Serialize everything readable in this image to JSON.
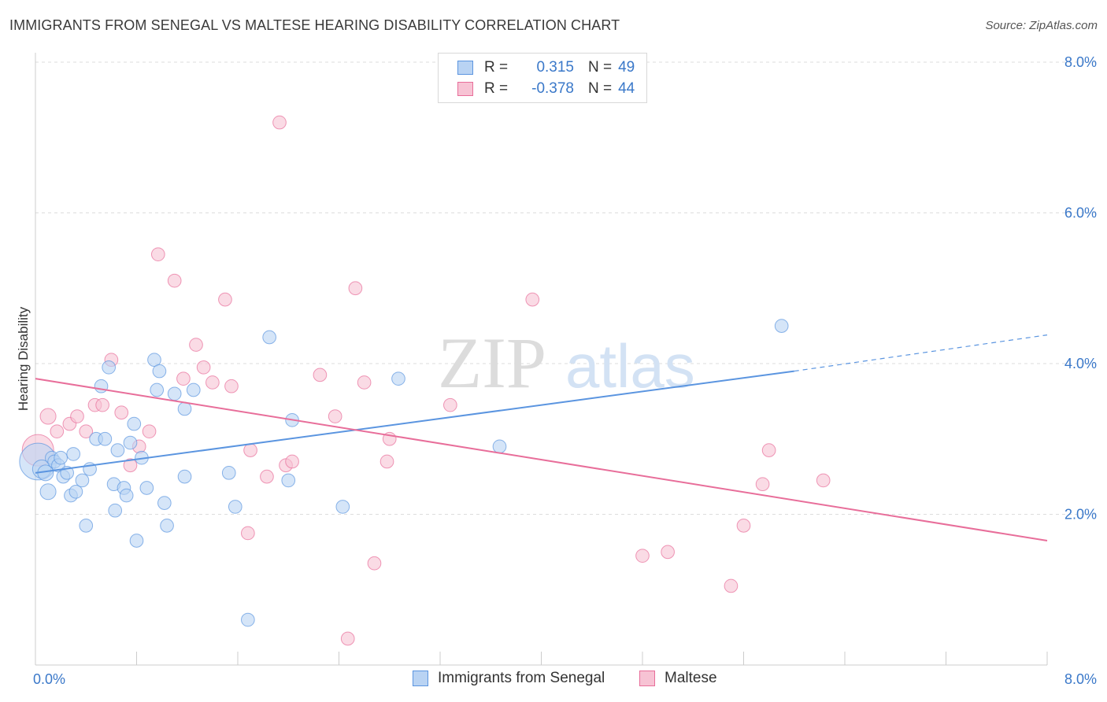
{
  "header": {
    "title": "IMMIGRANTS FROM SENEGAL VS MALTESE HEARING DISABILITY CORRELATION CHART",
    "source": "Source: ZipAtlas.com"
  },
  "colors": {
    "blue": "#5b95e0",
    "blue_fill": "#b9d3f3",
    "pink": "#e86e9a",
    "pink_fill": "#f7c3d4",
    "axis_text": "#3a78c9"
  },
  "legend": {
    "rows": [
      {
        "r_label": "R =",
        "r_value": "0.315",
        "n_label": "N =",
        "n_value": "49"
      },
      {
        "r_label": "R =",
        "r_value": "-0.378",
        "n_label": "N =",
        "n_value": "44"
      }
    ]
  },
  "watermark": {
    "zip": "ZIP",
    "atlas": "atlas"
  },
  "chart_data": {
    "type": "scatter",
    "title": "IMMIGRANTS FROM SENEGAL VS MALTESE HEARING DISABILITY CORRELATION CHART",
    "xlabel": "",
    "ylabel": "Hearing Disability",
    "xlim": [
      0,
      8
    ],
    "ylim": [
      0,
      8
    ],
    "x_tick_labels": [
      "0.0%",
      "8.0%"
    ],
    "y_ticks": [
      {
        "value": 2,
        "label": "2.0%"
      },
      {
        "value": 4,
        "label": "4.0%"
      },
      {
        "value": 6,
        "label": "6.0%"
      },
      {
        "value": 8,
        "label": "8.0%"
      }
    ],
    "legend_position": "bottom",
    "series": [
      {
        "name": "Immigrants from Senegal",
        "color": "#5b95e0",
        "trend": {
          "x0": 0,
          "y0": 2.55,
          "x1": 6.0,
          "y1": 3.9,
          "dashed_to_x": 8.0,
          "dashed_to_y": 4.38
        },
        "points": [
          [
            0.02,
            2.7
          ],
          [
            0.05,
            2.6
          ],
          [
            0.08,
            2.55
          ],
          [
            0.1,
            2.3
          ],
          [
            0.13,
            2.75
          ],
          [
            0.15,
            2.7
          ],
          [
            0.18,
            2.65
          ],
          [
            0.2,
            2.75
          ],
          [
            0.22,
            2.5
          ],
          [
            0.25,
            2.55
          ],
          [
            0.28,
            2.25
          ],
          [
            0.3,
            2.8
          ],
          [
            0.32,
            2.3
          ],
          [
            0.37,
            2.45
          ],
          [
            0.4,
            1.85
          ],
          [
            0.43,
            2.6
          ],
          [
            0.48,
            3.0
          ],
          [
            0.52,
            3.7
          ],
          [
            0.55,
            3.0
          ],
          [
            0.58,
            3.95
          ],
          [
            0.62,
            2.4
          ],
          [
            0.63,
            2.05
          ],
          [
            0.65,
            2.85
          ],
          [
            0.7,
            2.35
          ],
          [
            0.72,
            2.25
          ],
          [
            0.75,
            2.95
          ],
          [
            0.78,
            3.2
          ],
          [
            0.8,
            1.65
          ],
          [
            0.84,
            2.75
          ],
          [
            0.88,
            2.35
          ],
          [
            0.94,
            4.05
          ],
          [
            0.96,
            3.65
          ],
          [
            0.98,
            3.9
          ],
          [
            1.02,
            2.15
          ],
          [
            1.04,
            1.85
          ],
          [
            1.1,
            3.6
          ],
          [
            1.18,
            2.5
          ],
          [
            1.18,
            3.4
          ],
          [
            1.25,
            3.65
          ],
          [
            1.53,
            2.55
          ],
          [
            1.58,
            2.1
          ],
          [
            1.68,
            0.6
          ],
          [
            1.85,
            4.35
          ],
          [
            2.0,
            2.45
          ],
          [
            2.03,
            3.25
          ],
          [
            2.43,
            2.1
          ],
          [
            2.87,
            3.8
          ],
          [
            3.67,
            2.9
          ],
          [
            5.9,
            4.5
          ]
        ],
        "sizes": [
          28,
          14,
          12,
          12,
          10,
          10,
          10,
          10,
          10,
          10,
          10,
          10,
          10,
          10,
          10,
          10,
          10,
          10,
          10,
          10,
          10,
          10,
          10,
          10,
          10,
          10,
          10,
          10,
          10,
          10,
          10,
          10,
          10,
          10,
          10,
          10,
          10,
          10,
          10,
          10,
          10,
          10,
          10,
          10,
          10,
          10,
          10,
          10,
          10
        ]
      },
      {
        "name": "Maltese",
        "color": "#e86e9a",
        "trend": {
          "x0": 0,
          "y0": 3.8,
          "x1": 8.0,
          "y1": 1.65
        },
        "points": [
          [
            0.02,
            2.85
          ],
          [
            0.1,
            3.3
          ],
          [
            0.17,
            3.1
          ],
          [
            0.27,
            3.2
          ],
          [
            0.33,
            3.3
          ],
          [
            0.4,
            3.1
          ],
          [
            0.47,
            3.45
          ],
          [
            0.53,
            3.45
          ],
          [
            0.6,
            4.05
          ],
          [
            0.68,
            3.35
          ],
          [
            0.75,
            2.65
          ],
          [
            0.82,
            2.9
          ],
          [
            0.9,
            3.1
          ],
          [
            0.97,
            5.45
          ],
          [
            1.1,
            5.1
          ],
          [
            1.17,
            3.8
          ],
          [
            1.27,
            4.25
          ],
          [
            1.33,
            3.95
          ],
          [
            1.4,
            3.75
          ],
          [
            1.5,
            4.85
          ],
          [
            1.55,
            3.7
          ],
          [
            1.68,
            1.75
          ],
          [
            1.7,
            2.85
          ],
          [
            1.83,
            2.5
          ],
          [
            1.93,
            7.2
          ],
          [
            1.98,
            2.65
          ],
          [
            2.03,
            2.7
          ],
          [
            2.25,
            3.85
          ],
          [
            2.37,
            3.3
          ],
          [
            2.47,
            0.35
          ],
          [
            2.53,
            5.0
          ],
          [
            2.6,
            3.75
          ],
          [
            2.68,
            1.35
          ],
          [
            2.78,
            2.7
          ],
          [
            2.8,
            3.0
          ],
          [
            3.28,
            3.45
          ],
          [
            3.93,
            4.85
          ],
          [
            4.8,
            1.45
          ],
          [
            5.0,
            1.5
          ],
          [
            5.5,
            1.05
          ],
          [
            5.6,
            1.85
          ],
          [
            5.75,
            2.4
          ],
          [
            5.8,
            2.85
          ],
          [
            6.23,
            2.45
          ]
        ],
        "sizes": [
          24,
          12,
          10,
          10,
          10,
          10,
          10,
          10,
          10,
          10,
          10,
          10,
          10,
          10,
          10,
          10,
          10,
          10,
          10,
          10,
          10,
          10,
          10,
          10,
          10,
          10,
          10,
          10,
          10,
          10,
          10,
          10,
          10,
          10,
          10,
          10,
          10,
          10,
          10,
          10,
          10,
          10,
          10,
          10
        ]
      }
    ]
  }
}
